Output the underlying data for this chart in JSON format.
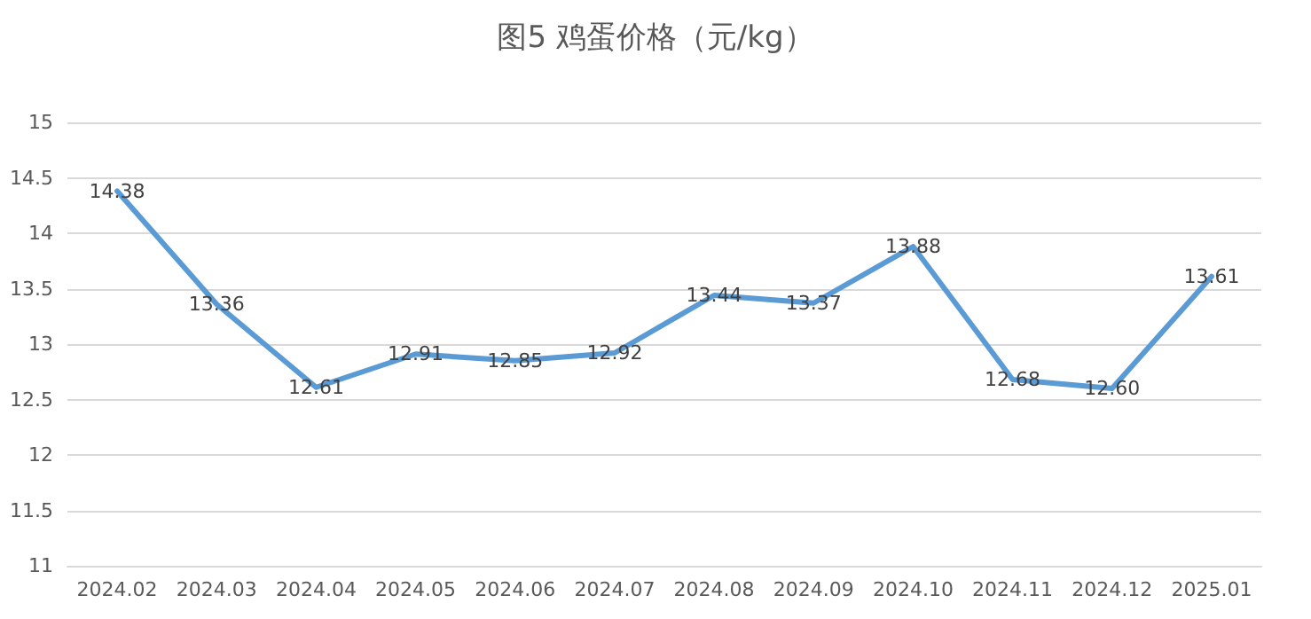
{
  "chart_data": {
    "type": "line",
    "title": "图5 鸡蛋价格（元/kg）",
    "categories": [
      "2024.02",
      "2024.03",
      "2024.04",
      "2024.05",
      "2024.06",
      "2024.07",
      "2024.08",
      "2024.09",
      "2024.10",
      "2024.11",
      "2024.12",
      "2025.01"
    ],
    "series": [
      {
        "color": "#5b9bd5",
        "values": [
          14.38,
          13.36,
          12.61,
          12.91,
          12.85,
          12.92,
          13.44,
          13.37,
          13.88,
          12.68,
          12.6,
          13.61
        ],
        "value_labels": [
          "14.38",
          "13.36",
          "12.61",
          "12.91",
          "12.85",
          "12.92",
          "13.44",
          "13.37",
          "13.88",
          "12.68",
          "12.60",
          "13.61"
        ]
      }
    ],
    "ylim": [
      11,
      15
    ],
    "yticks": [
      11,
      11.5,
      12,
      12.5,
      13,
      13.5,
      14,
      14.5,
      15
    ],
    "grid": "y",
    "marker": "none",
    "line_style": "solid"
  }
}
